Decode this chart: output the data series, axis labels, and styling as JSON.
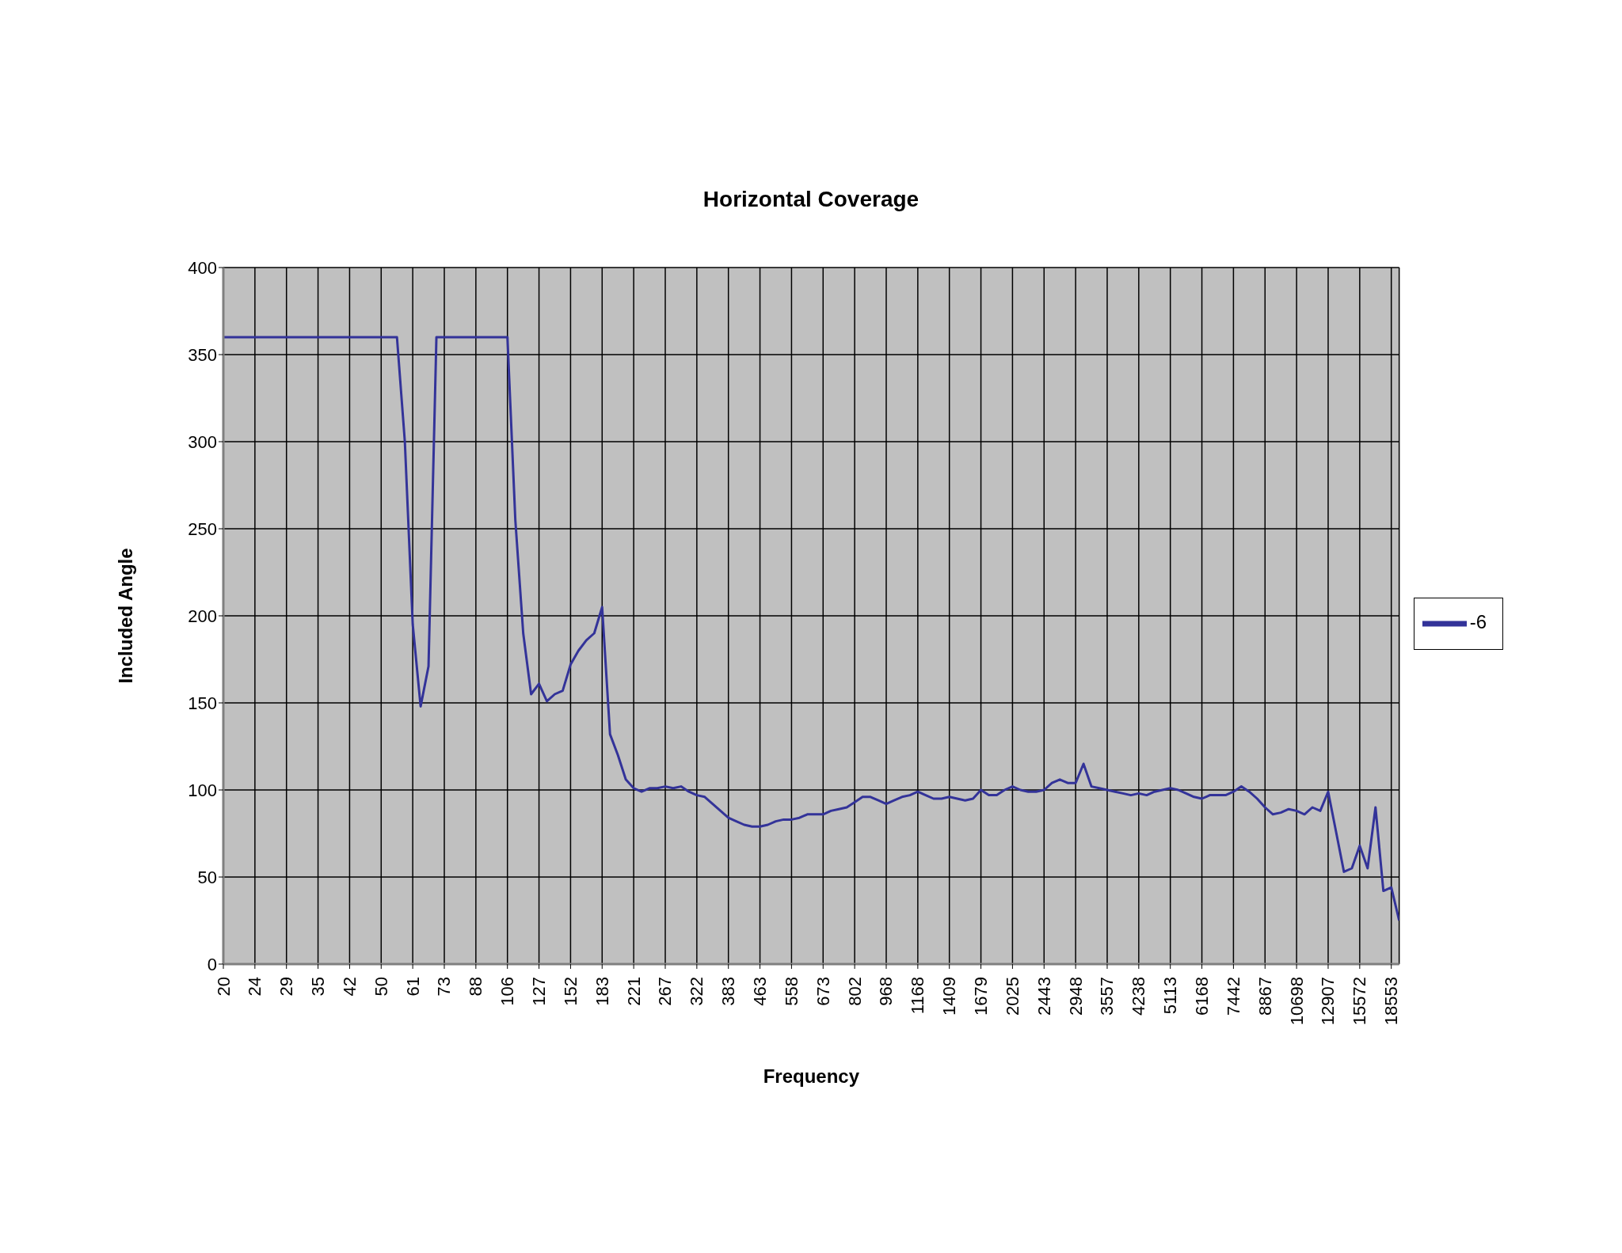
{
  "chart_data": {
    "type": "line",
    "title": "Horizontal Coverage",
    "xlabel": "Frequency",
    "ylabel": "Included Angle",
    "categories": [
      "20",
      null,
      null,
      null,
      "24",
      null,
      null,
      null,
      "29",
      null,
      null,
      null,
      "35",
      null,
      null,
      null,
      "42",
      null,
      null,
      null,
      "50",
      null,
      null,
      null,
      "61",
      null,
      null,
      null,
      "73",
      null,
      null,
      null,
      "88",
      null,
      null,
      null,
      "106",
      null,
      null,
      null,
      "127",
      null,
      null,
      null,
      "152",
      null,
      null,
      null,
      "183",
      null,
      null,
      null,
      "221",
      null,
      null,
      null,
      "267",
      null,
      null,
      null,
      "322",
      null,
      null,
      null,
      "383",
      null,
      null,
      null,
      "463",
      null,
      null,
      null,
      "558",
      null,
      null,
      null,
      "673",
      null,
      null,
      null,
      "802",
      null,
      null,
      null,
      "968",
      null,
      null,
      null,
      "1168",
      null,
      null,
      null,
      "1409",
      null,
      null,
      null,
      "1679",
      null,
      null,
      null,
      "2025",
      null,
      null,
      null,
      "2443",
      null,
      null,
      null,
      "2948",
      null,
      null,
      null,
      "3557",
      null,
      null,
      null,
      "4238",
      null,
      null,
      null,
      "5113",
      null,
      null,
      null,
      "6168",
      null,
      null,
      null,
      "7442",
      null,
      null,
      null,
      "8867",
      null,
      null,
      null,
      "10698",
      null,
      null,
      null,
      "12907",
      null,
      null,
      null,
      "15572",
      null,
      null,
      null,
      "18553",
      null
    ],
    "series": [
      {
        "name": "-6",
        "color": "#333399",
        "values": [
          360,
          360,
          360,
          360,
          360,
          360,
          360,
          360,
          360,
          360,
          360,
          360,
          360,
          360,
          360,
          360,
          360,
          360,
          360,
          360,
          360,
          360,
          360,
          300,
          195,
          148,
          171,
          360,
          360,
          360,
          360,
          360,
          360,
          360,
          360,
          360,
          360,
          255,
          190,
          155,
          161,
          151,
          155,
          157,
          172,
          180,
          186,
          190,
          205,
          132,
          120,
          106,
          101,
          99,
          101,
          101,
          102,
          101,
          102,
          99,
          97,
          96,
          92,
          88,
          84,
          82,
          80,
          79,
          79,
          80,
          82,
          83,
          83,
          84,
          86,
          86,
          86,
          88,
          89,
          90,
          93,
          96,
          96,
          94,
          92,
          94,
          96,
          97,
          99,
          97,
          95,
          95,
          96,
          95,
          94,
          95,
          100,
          97,
          97,
          100,
          102,
          100,
          99,
          99,
          100,
          104,
          106,
          104,
          104,
          115,
          102,
          101,
          100,
          99,
          98,
          97,
          98,
          97,
          99,
          100,
          101,
          100,
          98,
          96,
          95,
          97,
          97,
          97,
          99,
          102,
          99,
          95,
          90,
          86,
          87,
          89,
          88,
          86,
          90,
          88,
          99,
          76,
          53,
          55,
          68,
          55,
          90,
          42,
          44,
          25
        ]
      }
    ],
    "ylim": [
      0,
      400
    ],
    "yticks": [
      0,
      50,
      100,
      150,
      200,
      250,
      300,
      350,
      400
    ],
    "grid": true,
    "legend": "right",
    "marker": "none",
    "line_style": "solid"
  }
}
